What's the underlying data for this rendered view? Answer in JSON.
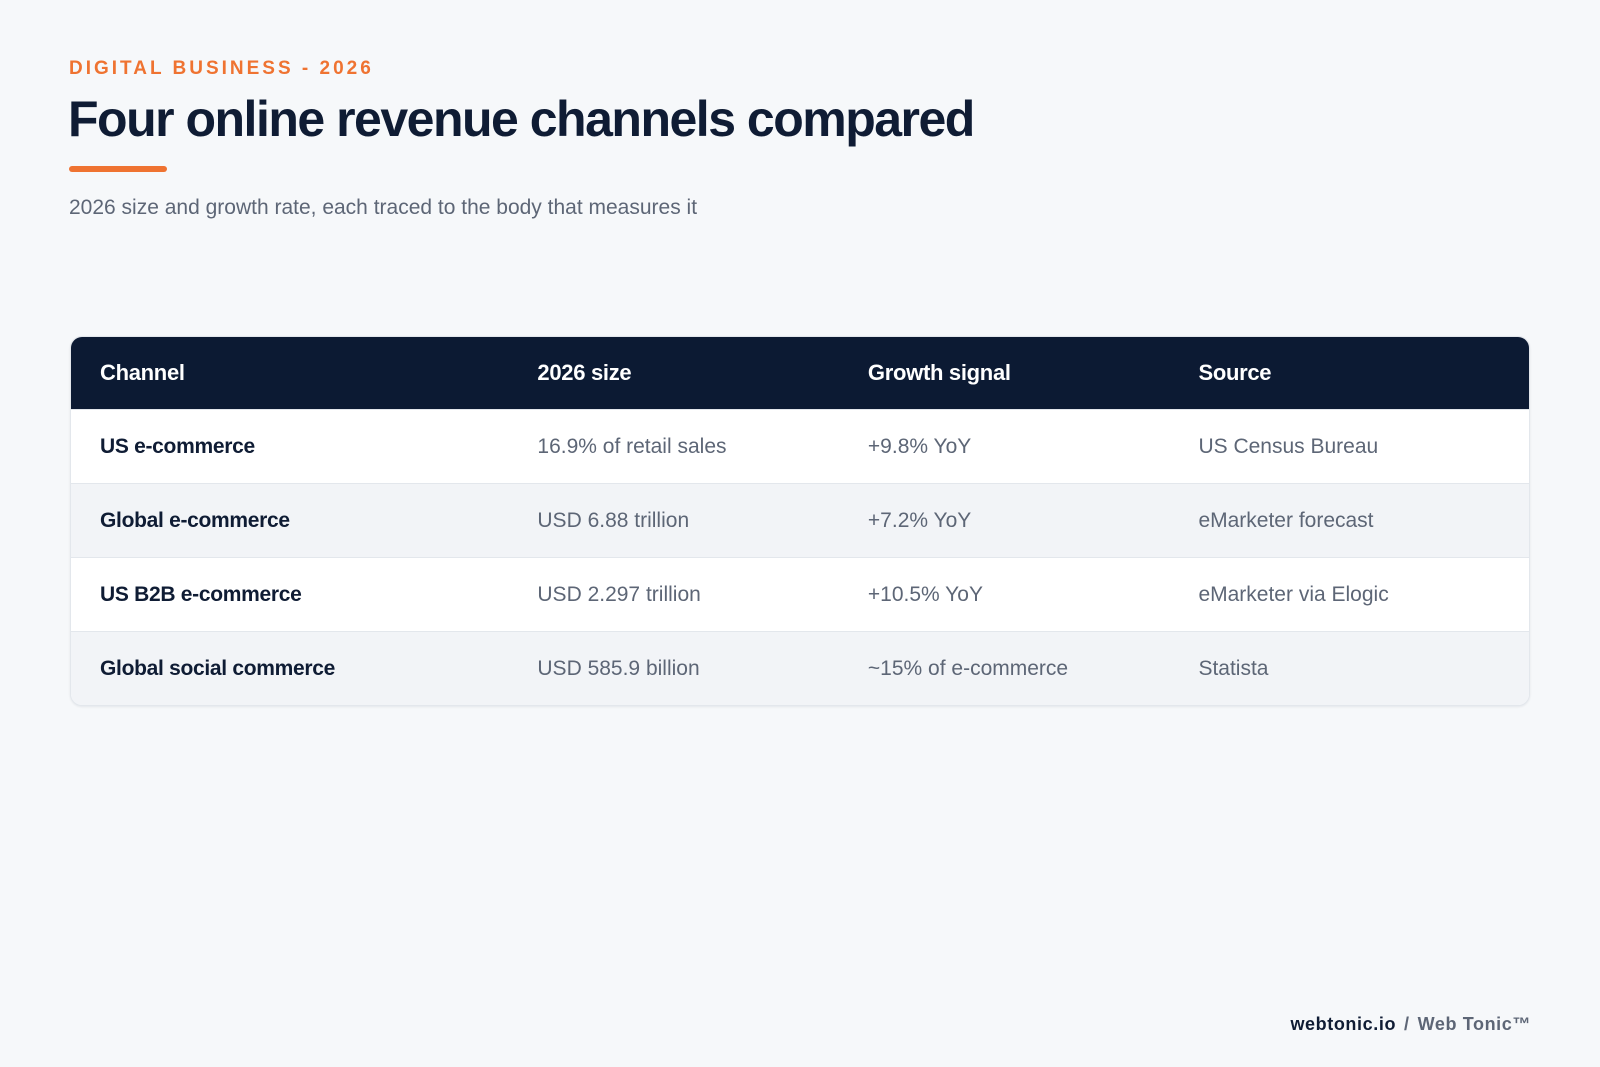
{
  "header": {
    "eyebrow": "DIGITAL BUSINESS - 2026",
    "title": "Four online revenue channels compared",
    "subtitle": "2026 size and growth rate, each traced to the body that measures it"
  },
  "table": {
    "columns": [
      "Channel",
      "2026 size",
      "Growth signal",
      "Source"
    ],
    "rows": [
      {
        "channel": "US e-commerce",
        "size": "16.9% of retail sales",
        "growth": "+9.8% YoY",
        "source": "US Census Bureau"
      },
      {
        "channel": "Global e-commerce",
        "size": "USD 6.88 trillion",
        "growth": "+7.2% YoY",
        "source": "eMarketer forecast"
      },
      {
        "channel": "US B2B e-commerce",
        "size": "USD 2.297 trillion",
        "growth": "+10.5% YoY",
        "source": "eMarketer via Elogic"
      },
      {
        "channel": "Global social commerce",
        "size": "USD 585.9 billion",
        "growth": "~15% of e-commerce",
        "source": "Statista"
      }
    ]
  },
  "footer": {
    "domain": "webtonic.io",
    "separator": "/",
    "brand": "Web Tonic™"
  },
  "colors": {
    "accent": "#ef7331",
    "header_bg": "#0c1a33",
    "page_bg": "#f6f8fa"
  }
}
